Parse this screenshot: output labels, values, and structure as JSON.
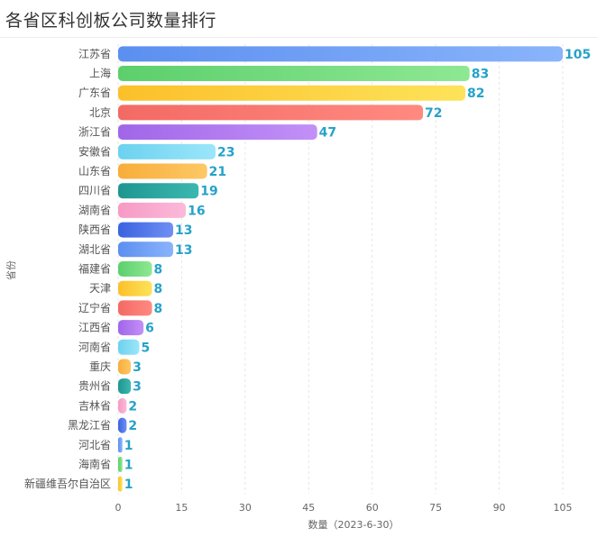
{
  "chart_data": {
    "type": "bar",
    "orientation": "horizontal",
    "title": "各省区科创板公司数量排行",
    "xlabel": "数量（2023-6-30）",
    "ylabel": "省份",
    "xlim": [
      0,
      105
    ],
    "xticks": [
      0,
      15,
      30,
      45,
      60,
      75,
      90,
      105
    ],
    "grid": true,
    "categories": [
      "江苏省",
      "上海",
      "广东省",
      "北京",
      "浙江省",
      "安徽省",
      "山东省",
      "四川省",
      "湖南省",
      "陕西省",
      "湖北省",
      "福建省",
      "天津",
      "辽宁省",
      "江西省",
      "河南省",
      "重庆",
      "贵州省",
      "吉林省",
      "黑龙江省",
      "河北省",
      "海南省",
      "新疆维吾尔自治区"
    ],
    "values": [
      105,
      83,
      82,
      72,
      47,
      23,
      21,
      19,
      16,
      13,
      13,
      8,
      8,
      8,
      6,
      5,
      3,
      3,
      2,
      2,
      1,
      1,
      1
    ],
    "colors": [
      [
        "#5b8ff0",
        "#8ab4fb"
      ],
      [
        "#5ccf6c",
        "#8ee893"
      ],
      [
        "#fbc02a",
        "#fde35a"
      ],
      [
        "#f36a64",
        "#ff8a80"
      ],
      [
        "#a066e8",
        "#c390f7"
      ],
      [
        "#6cd2ef",
        "#9be6fa"
      ],
      [
        "#f8ad3a",
        "#fdc865"
      ],
      [
        "#1e9690",
        "#3cb8b0"
      ],
      [
        "#f79ac4",
        "#fbbad9"
      ],
      [
        "#3b62e0",
        "#6e8ff3"
      ]
    ]
  }
}
